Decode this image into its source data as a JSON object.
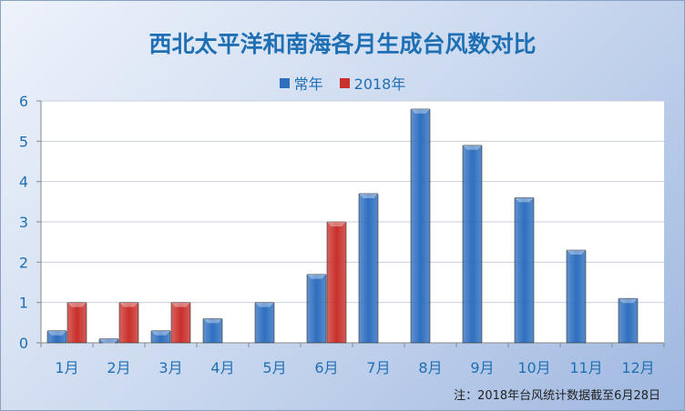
{
  "chart_data": {
    "type": "bar",
    "title": "西北太平洋和南海各月生成台风数对比",
    "categories": [
      "1月",
      "2月",
      "3月",
      "4月",
      "5月",
      "6月",
      "7月",
      "8月",
      "9月",
      "10月",
      "11月",
      "12月"
    ],
    "series": [
      {
        "name": "常年",
        "color": "#2e6fbf",
        "values": [
          0.3,
          0.1,
          0.3,
          0.6,
          1.0,
          1.7,
          3.7,
          5.8,
          4.9,
          3.6,
          2.3,
          1.1
        ]
      },
      {
        "name": "2018年",
        "color": "#c9302c",
        "values": [
          1,
          1,
          1,
          null,
          null,
          3,
          null,
          null,
          null,
          null,
          null,
          null
        ]
      }
    ],
    "ylim": [
      0,
      6
    ],
    "yticks": [
      "0",
      "1",
      "2",
      "3",
      "4",
      "5",
      "6"
    ],
    "grid": true,
    "legend": "top",
    "note": "注：2018年台风统计数据截至6月28日"
  }
}
